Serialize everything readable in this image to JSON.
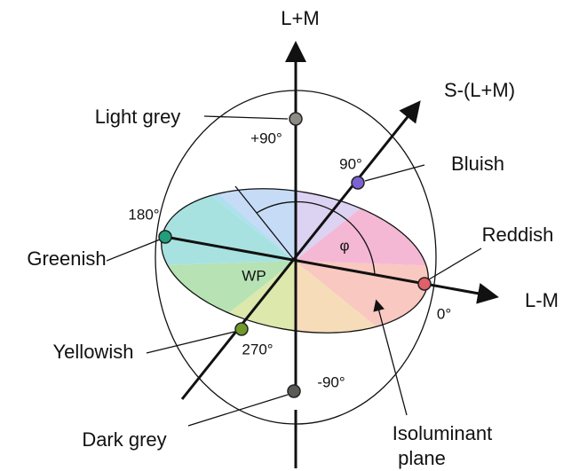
{
  "axes": {
    "vertical": "L+M",
    "diagonal": "S-(L+M)",
    "horizontal": "L-M"
  },
  "angles": {
    "top": "+90°",
    "blue": "90°",
    "green": "180°",
    "red": "0°",
    "yellow": "270°",
    "bottom": "-90°",
    "phi": "φ"
  },
  "center": "WP",
  "points": [
    {
      "label": "Light grey",
      "color": "#8c8c84"
    },
    {
      "label": "Bluish",
      "color": "#7b63d6"
    },
    {
      "label": "Greenish",
      "color": "#1fa07a"
    },
    {
      "label": "Reddish",
      "color": "#e0606a"
    },
    {
      "label": "Yellowish",
      "color": "#6f9a2a"
    },
    {
      "label": "Dark grey",
      "color": "#5a5a56"
    }
  ],
  "plane_label": [
    "Isoluminant",
    "plane"
  ]
}
